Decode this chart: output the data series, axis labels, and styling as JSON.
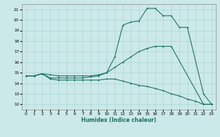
{
  "xlabel": "Humidex (Indice chaleur)",
  "bg_color": "#cce9e9",
  "grid_color": "#aad4d4",
  "line_color": "#1a7060",
  "xlim": [
    -0.5,
    23.5
  ],
  "ylim": [
    11.5,
    21.5
  ],
  "xticks": [
    0,
    1,
    2,
    3,
    4,
    5,
    6,
    7,
    8,
    9,
    10,
    11,
    12,
    13,
    14,
    15,
    16,
    17,
    18,
    19,
    20,
    21,
    22,
    23
  ],
  "yticks": [
    12,
    13,
    14,
    15,
    16,
    17,
    18,
    19,
    20,
    21
  ],
  "line1_x": [
    0,
    1,
    2,
    3,
    4,
    5,
    6,
    7,
    8,
    9,
    10,
    11,
    12,
    13,
    14,
    15,
    16,
    17,
    18,
    19,
    20,
    22,
    23
  ],
  "line1_y": [
    14.7,
    14.7,
    14.9,
    14.8,
    14.7,
    14.7,
    14.7,
    14.7,
    14.7,
    14.8,
    15.0,
    16.5,
    19.5,
    19.8,
    19.9,
    21.1,
    21.1,
    20.4,
    20.4,
    19.3,
    19.3,
    13.0,
    12.0
  ],
  "line2_x": [
    0,
    1,
    2,
    3,
    4,
    5,
    6,
    7,
    8,
    9,
    10,
    11,
    12,
    13,
    14,
    15,
    16,
    17,
    18,
    22,
    23
  ],
  "line2_y": [
    14.7,
    14.7,
    14.9,
    14.5,
    14.5,
    14.5,
    14.5,
    14.5,
    14.6,
    14.7,
    15.0,
    15.5,
    16.0,
    16.5,
    17.0,
    17.3,
    17.5,
    17.5,
    17.5,
    12.0,
    12.0
  ],
  "line3_x": [
    0,
    1,
    2,
    3,
    4,
    5,
    6,
    7,
    8,
    9,
    10,
    11,
    12,
    13,
    14,
    15,
    16,
    17,
    18,
    19,
    20,
    21,
    22,
    23
  ],
  "line3_y": [
    14.7,
    14.7,
    14.9,
    14.4,
    14.3,
    14.3,
    14.3,
    14.3,
    14.3,
    14.3,
    14.4,
    14.4,
    14.2,
    14.0,
    13.8,
    13.7,
    13.5,
    13.3,
    13.0,
    12.8,
    12.5,
    12.3,
    12.0,
    12.0
  ]
}
